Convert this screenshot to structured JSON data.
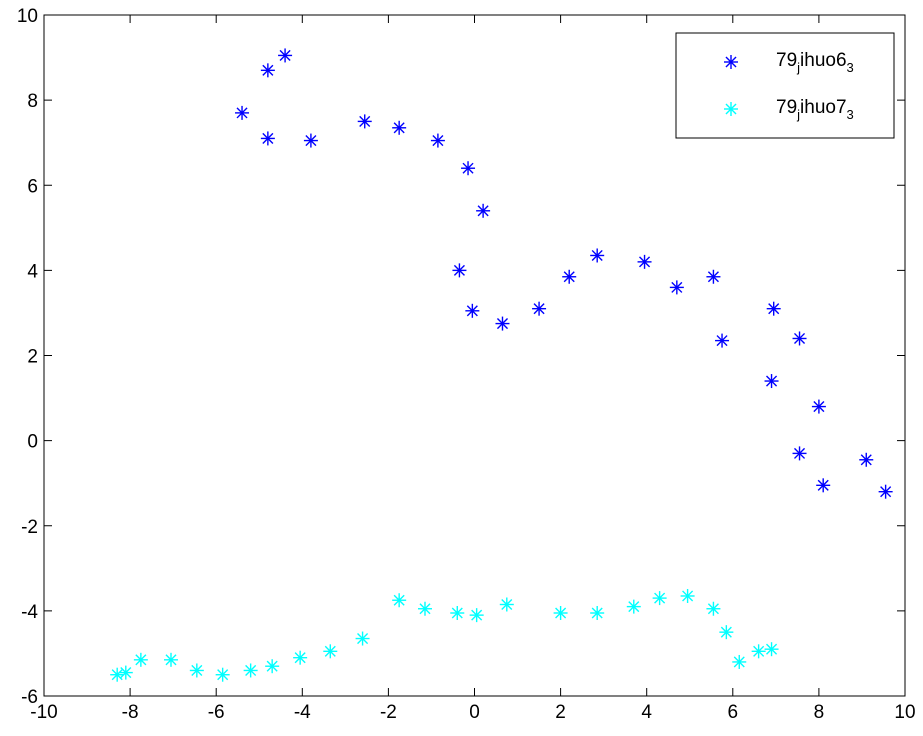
{
  "chart_data": {
    "type": "scatter",
    "xlim": [
      -10,
      10
    ],
    "ylim": [
      -6,
      10
    ],
    "x_ticks": [
      -10,
      -8,
      -6,
      -4,
      -2,
      0,
      2,
      4,
      6,
      8,
      10
    ],
    "y_ticks": [
      -6,
      -4,
      -2,
      0,
      2,
      4,
      6,
      8,
      10
    ],
    "x_tick_labels": [
      "-10",
      "-8",
      "-6",
      "-4",
      "-2",
      "0",
      "2",
      "4",
      "6",
      "8",
      "10"
    ],
    "y_tick_labels": [
      "-6",
      "-4",
      "-2",
      "0",
      "2",
      "4",
      "6",
      "8",
      "10"
    ],
    "grid": false,
    "legend_position": "top-right",
    "marker": "asterisk",
    "series": [
      {
        "legend": {
          "base": "79",
          "sub1": "j",
          "mid": "ihuo6",
          "sub2": "3"
        },
        "color": "#0000ff",
        "points": [
          [
            -5.4,
            7.7
          ],
          [
            -4.8,
            8.7
          ],
          [
            -4.4,
            9.05
          ],
          [
            -4.8,
            7.1
          ],
          [
            -3.8,
            7.05
          ],
          [
            -2.55,
            7.5
          ],
          [
            -1.75,
            7.35
          ],
          [
            -0.85,
            7.05
          ],
          [
            -0.15,
            6.4
          ],
          [
            0.2,
            5.4
          ],
          [
            -0.35,
            4.0
          ],
          [
            -0.05,
            3.05
          ],
          [
            0.65,
            2.75
          ],
          [
            1.5,
            3.1
          ],
          [
            2.2,
            3.85
          ],
          [
            2.85,
            4.35
          ],
          [
            3.95,
            4.2
          ],
          [
            4.7,
            3.6
          ],
          [
            5.55,
            3.85
          ],
          [
            5.75,
            2.35
          ],
          [
            6.95,
            3.1
          ],
          [
            6.9,
            1.4
          ],
          [
            7.55,
            2.4
          ],
          [
            7.55,
            -0.3
          ],
          [
            8.0,
            0.8
          ],
          [
            8.1,
            -1.05
          ],
          [
            9.1,
            -0.45
          ],
          [
            9.55,
            -1.2
          ]
        ]
      },
      {
        "legend": {
          "base": "79",
          "sub1": "j",
          "mid": "ihuo7",
          "sub2": "3"
        },
        "color": "#00ffff",
        "points": [
          [
            -8.3,
            -5.5
          ],
          [
            -8.1,
            -5.45
          ],
          [
            -7.75,
            -5.15
          ],
          [
            -7.05,
            -5.15
          ],
          [
            -6.45,
            -5.4
          ],
          [
            -5.85,
            -5.5
          ],
          [
            -5.2,
            -5.4
          ],
          [
            -4.7,
            -5.3
          ],
          [
            -4.05,
            -5.1
          ],
          [
            -3.35,
            -4.95
          ],
          [
            -2.6,
            -4.65
          ],
          [
            -1.75,
            -3.75
          ],
          [
            -1.15,
            -3.95
          ],
          [
            -0.4,
            -4.05
          ],
          [
            0.05,
            -4.1
          ],
          [
            0.75,
            -3.85
          ],
          [
            2.0,
            -4.05
          ],
          [
            2.85,
            -4.05
          ],
          [
            3.7,
            -3.9
          ],
          [
            4.3,
            -3.7
          ],
          [
            4.95,
            -3.65
          ],
          [
            5.55,
            -3.95
          ],
          [
            5.85,
            -4.5
          ],
          [
            6.15,
            -5.2
          ],
          [
            6.6,
            -4.95
          ],
          [
            6.9,
            -4.9
          ]
        ]
      }
    ]
  }
}
